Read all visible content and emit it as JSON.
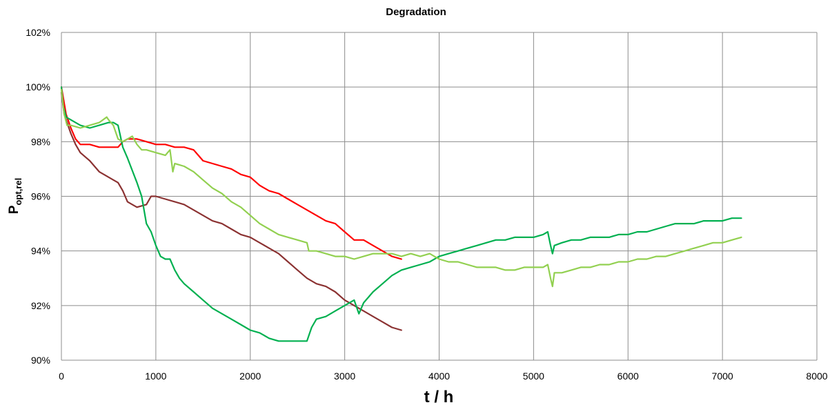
{
  "chart_data": {
    "type": "line",
    "title": "Degradation",
    "xlabel": "t / h",
    "ylabel_main": "P",
    "ylabel_sub": "opt,rel",
    "xlim": [
      0,
      8000
    ],
    "ylim": [
      0.9,
      1.02
    ],
    "x_ticks": [
      0,
      1000,
      2000,
      3000,
      4000,
      5000,
      6000,
      7000,
      8000
    ],
    "x_tick_labels": [
      "0",
      "1000",
      "2000",
      "3000",
      "4000",
      "5000",
      "6000",
      "7000",
      "8000"
    ],
    "y_ticks": [
      0.9,
      0.92,
      0.94,
      0.96,
      0.98,
      1.0,
      1.02
    ],
    "y_tick_labels": [
      "90%",
      "92%",
      "94%",
      "96%",
      "98%",
      "100%",
      "102%"
    ],
    "grid": true,
    "legend": "none",
    "series": [
      {
        "color": "#ff0000",
        "points": [
          [
            0,
            1.0
          ],
          [
            50,
            0.99
          ],
          [
            100,
            0.985
          ],
          [
            150,
            0.981
          ],
          [
            200,
            0.979
          ],
          [
            300,
            0.979
          ],
          [
            400,
            0.978
          ],
          [
            500,
            0.978
          ],
          [
            550,
            0.978
          ],
          [
            600,
            0.978
          ],
          [
            650,
            0.98
          ],
          [
            700,
            0.981
          ],
          [
            800,
            0.981
          ],
          [
            900,
            0.98
          ],
          [
            1000,
            0.979
          ],
          [
            1100,
            0.979
          ],
          [
            1200,
            0.978
          ],
          [
            1300,
            0.978
          ],
          [
            1400,
            0.977
          ],
          [
            1450,
            0.975
          ],
          [
            1500,
            0.973
          ],
          [
            1600,
            0.972
          ],
          [
            1700,
            0.971
          ],
          [
            1800,
            0.97
          ],
          [
            1900,
            0.968
          ],
          [
            2000,
            0.967
          ],
          [
            2100,
            0.964
          ],
          [
            2200,
            0.962
          ],
          [
            2300,
            0.961
          ],
          [
            2400,
            0.959
          ],
          [
            2500,
            0.957
          ],
          [
            2600,
            0.955
          ],
          [
            2700,
            0.953
          ],
          [
            2800,
            0.951
          ],
          [
            2900,
            0.95
          ],
          [
            3000,
            0.947
          ],
          [
            3100,
            0.944
          ],
          [
            3200,
            0.944
          ],
          [
            3300,
            0.942
          ],
          [
            3400,
            0.94
          ],
          [
            3500,
            0.938
          ],
          [
            3600,
            0.937
          ]
        ]
      },
      {
        "color": "#8b3232",
        "points": [
          [
            0,
            0.998
          ],
          [
            30,
            0.99
          ],
          [
            60,
            0.987
          ],
          [
            100,
            0.983
          ],
          [
            150,
            0.979
          ],
          [
            200,
            0.976
          ],
          [
            300,
            0.973
          ],
          [
            400,
            0.969
          ],
          [
            500,
            0.967
          ],
          [
            550,
            0.966
          ],
          [
            600,
            0.965
          ],
          [
            650,
            0.962
          ],
          [
            700,
            0.958
          ],
          [
            750,
            0.957
          ],
          [
            800,
            0.956
          ],
          [
            900,
            0.957
          ],
          [
            950,
            0.96
          ],
          [
            1000,
            0.96
          ],
          [
            1100,
            0.959
          ],
          [
            1200,
            0.958
          ],
          [
            1300,
            0.957
          ],
          [
            1400,
            0.955
          ],
          [
            1500,
            0.953
          ],
          [
            1600,
            0.951
          ],
          [
            1700,
            0.95
          ],
          [
            1800,
            0.948
          ],
          [
            1900,
            0.946
          ],
          [
            2000,
            0.945
          ],
          [
            2100,
            0.943
          ],
          [
            2200,
            0.941
          ],
          [
            2300,
            0.939
          ],
          [
            2400,
            0.936
          ],
          [
            2500,
            0.933
          ],
          [
            2600,
            0.93
          ],
          [
            2700,
            0.928
          ],
          [
            2800,
            0.927
          ],
          [
            2900,
            0.925
          ],
          [
            3000,
            0.922
          ],
          [
            3100,
            0.92
          ],
          [
            3200,
            0.918
          ],
          [
            3300,
            0.916
          ],
          [
            3400,
            0.914
          ],
          [
            3500,
            0.912
          ],
          [
            3600,
            0.911
          ]
        ]
      },
      {
        "color": "#00b050",
        "points": [
          [
            0,
            1.0
          ],
          [
            20,
            0.993
          ],
          [
            50,
            0.989
          ],
          [
            100,
            0.988
          ],
          [
            200,
            0.986
          ],
          [
            300,
            0.985
          ],
          [
            400,
            0.986
          ],
          [
            500,
            0.987
          ],
          [
            550,
            0.987
          ],
          [
            600,
            0.986
          ],
          [
            650,
            0.978
          ],
          [
            700,
            0.974
          ],
          [
            800,
            0.965
          ],
          [
            850,
            0.96
          ],
          [
            900,
            0.95
          ],
          [
            950,
            0.947
          ],
          [
            1000,
            0.942
          ],
          [
            1050,
            0.938
          ],
          [
            1100,
            0.937
          ],
          [
            1150,
            0.937
          ],
          [
            1200,
            0.933
          ],
          [
            1250,
            0.93
          ],
          [
            1300,
            0.928
          ],
          [
            1400,
            0.925
          ],
          [
            1500,
            0.922
          ],
          [
            1600,
            0.919
          ],
          [
            1700,
            0.917
          ],
          [
            1800,
            0.915
          ],
          [
            1900,
            0.913
          ],
          [
            2000,
            0.911
          ],
          [
            2100,
            0.91
          ],
          [
            2200,
            0.908
          ],
          [
            2300,
            0.907
          ],
          [
            2400,
            0.907
          ],
          [
            2500,
            0.907
          ],
          [
            2600,
            0.907
          ],
          [
            2620,
            0.909
          ],
          [
            2650,
            0.912
          ],
          [
            2700,
            0.915
          ],
          [
            2800,
            0.916
          ],
          [
            2900,
            0.918
          ],
          [
            3000,
            0.92
          ],
          [
            3100,
            0.922
          ],
          [
            3150,
            0.917
          ],
          [
            3200,
            0.921
          ],
          [
            3300,
            0.925
          ],
          [
            3400,
            0.928
          ],
          [
            3500,
            0.931
          ],
          [
            3600,
            0.933
          ],
          [
            3700,
            0.934
          ],
          [
            3800,
            0.935
          ],
          [
            3900,
            0.936
          ],
          [
            4000,
            0.938
          ],
          [
            4100,
            0.939
          ],
          [
            4200,
            0.94
          ],
          [
            4300,
            0.941
          ],
          [
            4400,
            0.942
          ],
          [
            4500,
            0.943
          ],
          [
            4600,
            0.944
          ],
          [
            4700,
            0.944
          ],
          [
            4800,
            0.945
          ],
          [
            4900,
            0.945
          ],
          [
            5000,
            0.945
          ],
          [
            5100,
            0.946
          ],
          [
            5150,
            0.947
          ],
          [
            5180,
            0.942
          ],
          [
            5200,
            0.939
          ],
          [
            5220,
            0.942
          ],
          [
            5300,
            0.943
          ],
          [
            5400,
            0.944
          ],
          [
            5500,
            0.944
          ],
          [
            5600,
            0.945
          ],
          [
            5700,
            0.945
          ],
          [
            5800,
            0.945
          ],
          [
            5900,
            0.946
          ],
          [
            6000,
            0.946
          ],
          [
            6100,
            0.947
          ],
          [
            6200,
            0.947
          ],
          [
            6300,
            0.948
          ],
          [
            6400,
            0.949
          ],
          [
            6500,
            0.95
          ],
          [
            6600,
            0.95
          ],
          [
            6700,
            0.95
          ],
          [
            6800,
            0.951
          ],
          [
            6900,
            0.951
          ],
          [
            7000,
            0.951
          ],
          [
            7100,
            0.952
          ],
          [
            7200,
            0.952
          ]
        ]
      },
      {
        "color": "#92d050",
        "points": [
          [
            0,
            0.999
          ],
          [
            30,
            0.99
          ],
          [
            60,
            0.986
          ],
          [
            100,
            0.986
          ],
          [
            200,
            0.985
          ],
          [
            300,
            0.986
          ],
          [
            400,
            0.987
          ],
          [
            480,
            0.989
          ],
          [
            500,
            0.988
          ],
          [
            550,
            0.986
          ],
          [
            600,
            0.981
          ],
          [
            650,
            0.98
          ],
          [
            700,
            0.981
          ],
          [
            750,
            0.982
          ],
          [
            800,
            0.979
          ],
          [
            850,
            0.977
          ],
          [
            900,
            0.977
          ],
          [
            1000,
            0.976
          ],
          [
            1100,
            0.975
          ],
          [
            1150,
            0.977
          ],
          [
            1180,
            0.969
          ],
          [
            1200,
            0.972
          ],
          [
            1300,
            0.971
          ],
          [
            1400,
            0.969
          ],
          [
            1500,
            0.966
          ],
          [
            1600,
            0.963
          ],
          [
            1700,
            0.961
          ],
          [
            1800,
            0.958
          ],
          [
            1900,
            0.956
          ],
          [
            2000,
            0.953
          ],
          [
            2100,
            0.95
          ],
          [
            2200,
            0.948
          ],
          [
            2300,
            0.946
          ],
          [
            2400,
            0.945
          ],
          [
            2500,
            0.944
          ],
          [
            2600,
            0.943
          ],
          [
            2620,
            0.94
          ],
          [
            2700,
            0.94
          ],
          [
            2800,
            0.939
          ],
          [
            2900,
            0.938
          ],
          [
            3000,
            0.938
          ],
          [
            3100,
            0.937
          ],
          [
            3200,
            0.938
          ],
          [
            3300,
            0.939
          ],
          [
            3400,
            0.939
          ],
          [
            3500,
            0.939
          ],
          [
            3600,
            0.938
          ],
          [
            3700,
            0.939
          ],
          [
            3800,
            0.938
          ],
          [
            3900,
            0.939
          ],
          [
            4000,
            0.937
          ],
          [
            4100,
            0.936
          ],
          [
            4200,
            0.936
          ],
          [
            4300,
            0.935
          ],
          [
            4400,
            0.934
          ],
          [
            4500,
            0.934
          ],
          [
            4600,
            0.934
          ],
          [
            4700,
            0.933
          ],
          [
            4800,
            0.933
          ],
          [
            4900,
            0.934
          ],
          [
            5000,
            0.934
          ],
          [
            5100,
            0.934
          ],
          [
            5150,
            0.935
          ],
          [
            5180,
            0.93
          ],
          [
            5200,
            0.927
          ],
          [
            5220,
            0.932
          ],
          [
            5300,
            0.932
          ],
          [
            5400,
            0.933
          ],
          [
            5500,
            0.934
          ],
          [
            5600,
            0.934
          ],
          [
            5700,
            0.935
          ],
          [
            5800,
            0.935
          ],
          [
            5900,
            0.936
          ],
          [
            6000,
            0.936
          ],
          [
            6100,
            0.937
          ],
          [
            6200,
            0.937
          ],
          [
            6300,
            0.938
          ],
          [
            6400,
            0.938
          ],
          [
            6500,
            0.939
          ],
          [
            6600,
            0.94
          ],
          [
            6700,
            0.941
          ],
          [
            6800,
            0.942
          ],
          [
            6900,
            0.943
          ],
          [
            7000,
            0.943
          ],
          [
            7100,
            0.944
          ],
          [
            7200,
            0.945
          ]
        ]
      }
    ]
  }
}
